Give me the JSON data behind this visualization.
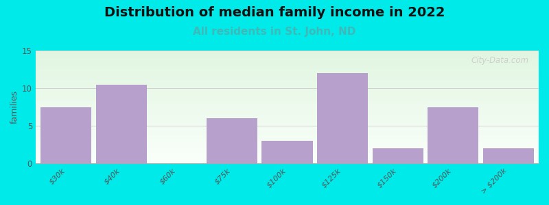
{
  "title": "Distribution of median family income in 2022",
  "subtitle": "All residents in St. John, ND",
  "ylabel": "families",
  "categories": [
    "$30k",
    "$40k",
    "$60k",
    "$75k",
    "$100k",
    "$125k",
    "$150k",
    "$200k",
    "> $200k"
  ],
  "values": [
    7.5,
    10.5,
    0,
    6,
    3,
    12,
    2,
    7.5,
    2
  ],
  "bar_color": "#b8a0cc",
  "background_color": "#00eaea",
  "plot_bg_green": "#d8f0d0",
  "plot_bg_white": "#f8fff8",
  "ylim": [
    0,
    15
  ],
  "yticks": [
    0,
    5,
    10,
    15
  ],
  "title_fontsize": 14,
  "subtitle_fontsize": 11,
  "subtitle_color": "#40b8b8",
  "watermark": "City-Data.com",
  "fig_width": 8.0,
  "fig_height": 3.0
}
